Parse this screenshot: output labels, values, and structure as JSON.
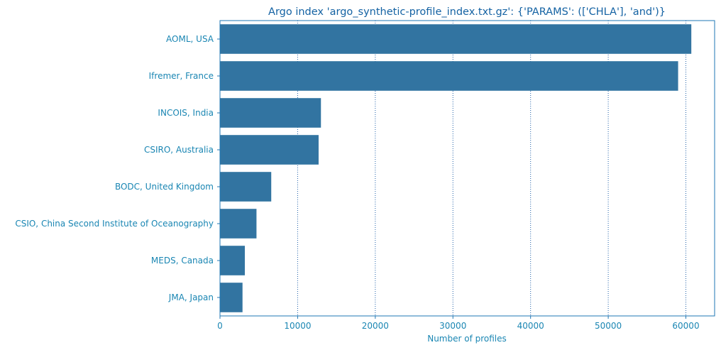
{
  "chart_data": {
    "type": "bar",
    "orientation": "horizontal",
    "title": "Argo index 'argo_synthetic-profile_index.txt.gz': {'PARAMS': (['CHLA'], 'and')}",
    "xlabel": "Number of profiles",
    "ylabel": "",
    "categories": [
      "AOML, USA",
      "Ifremer, France",
      "INCOIS, India",
      "CSIRO, Australia",
      "BODC, United Kingdom",
      "CSIO, China Second Institute of Oceanography",
      "MEDS, Canada",
      "JMA, Japan"
    ],
    "values": [
      60700,
      59000,
      13000,
      12700,
      6600,
      4700,
      3200,
      2900
    ],
    "xlim": [
      0,
      63700
    ],
    "xticks": [
      0,
      10000,
      20000,
      30000,
      40000,
      50000,
      60000
    ],
    "xtick_labels": [
      "0",
      "10000",
      "20000",
      "30000",
      "40000",
      "50000",
      "60000"
    ],
    "grid": "x-dotted",
    "bar_color": "#3274a1",
    "text_color": "#1a86b3",
    "title_color": "#1462a3",
    "axis_color": "#1f77b4",
    "grid_color": "#1f60a8"
  }
}
